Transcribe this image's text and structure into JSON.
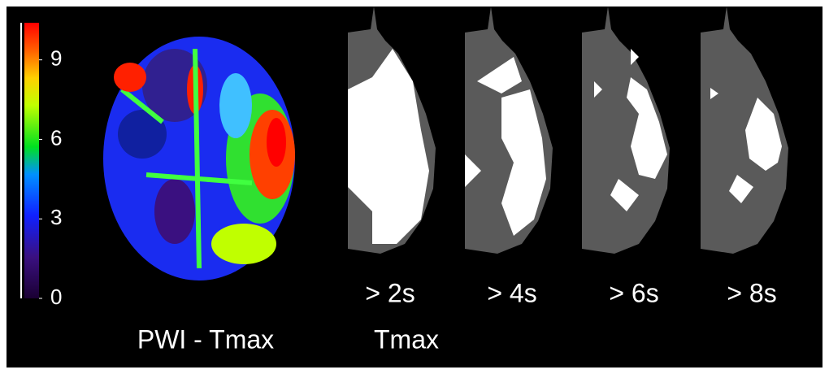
{
  "colorbar": {
    "range": [
      0,
      10.4
    ],
    "ticks": [
      0,
      3,
      6,
      9
    ]
  },
  "labels": {
    "pwi": "PWI - Tmax",
    "tmax": "Tmax",
    "thresholds": [
      "> 2s",
      "> 4s",
      "> 6s",
      "> 8s"
    ]
  }
}
